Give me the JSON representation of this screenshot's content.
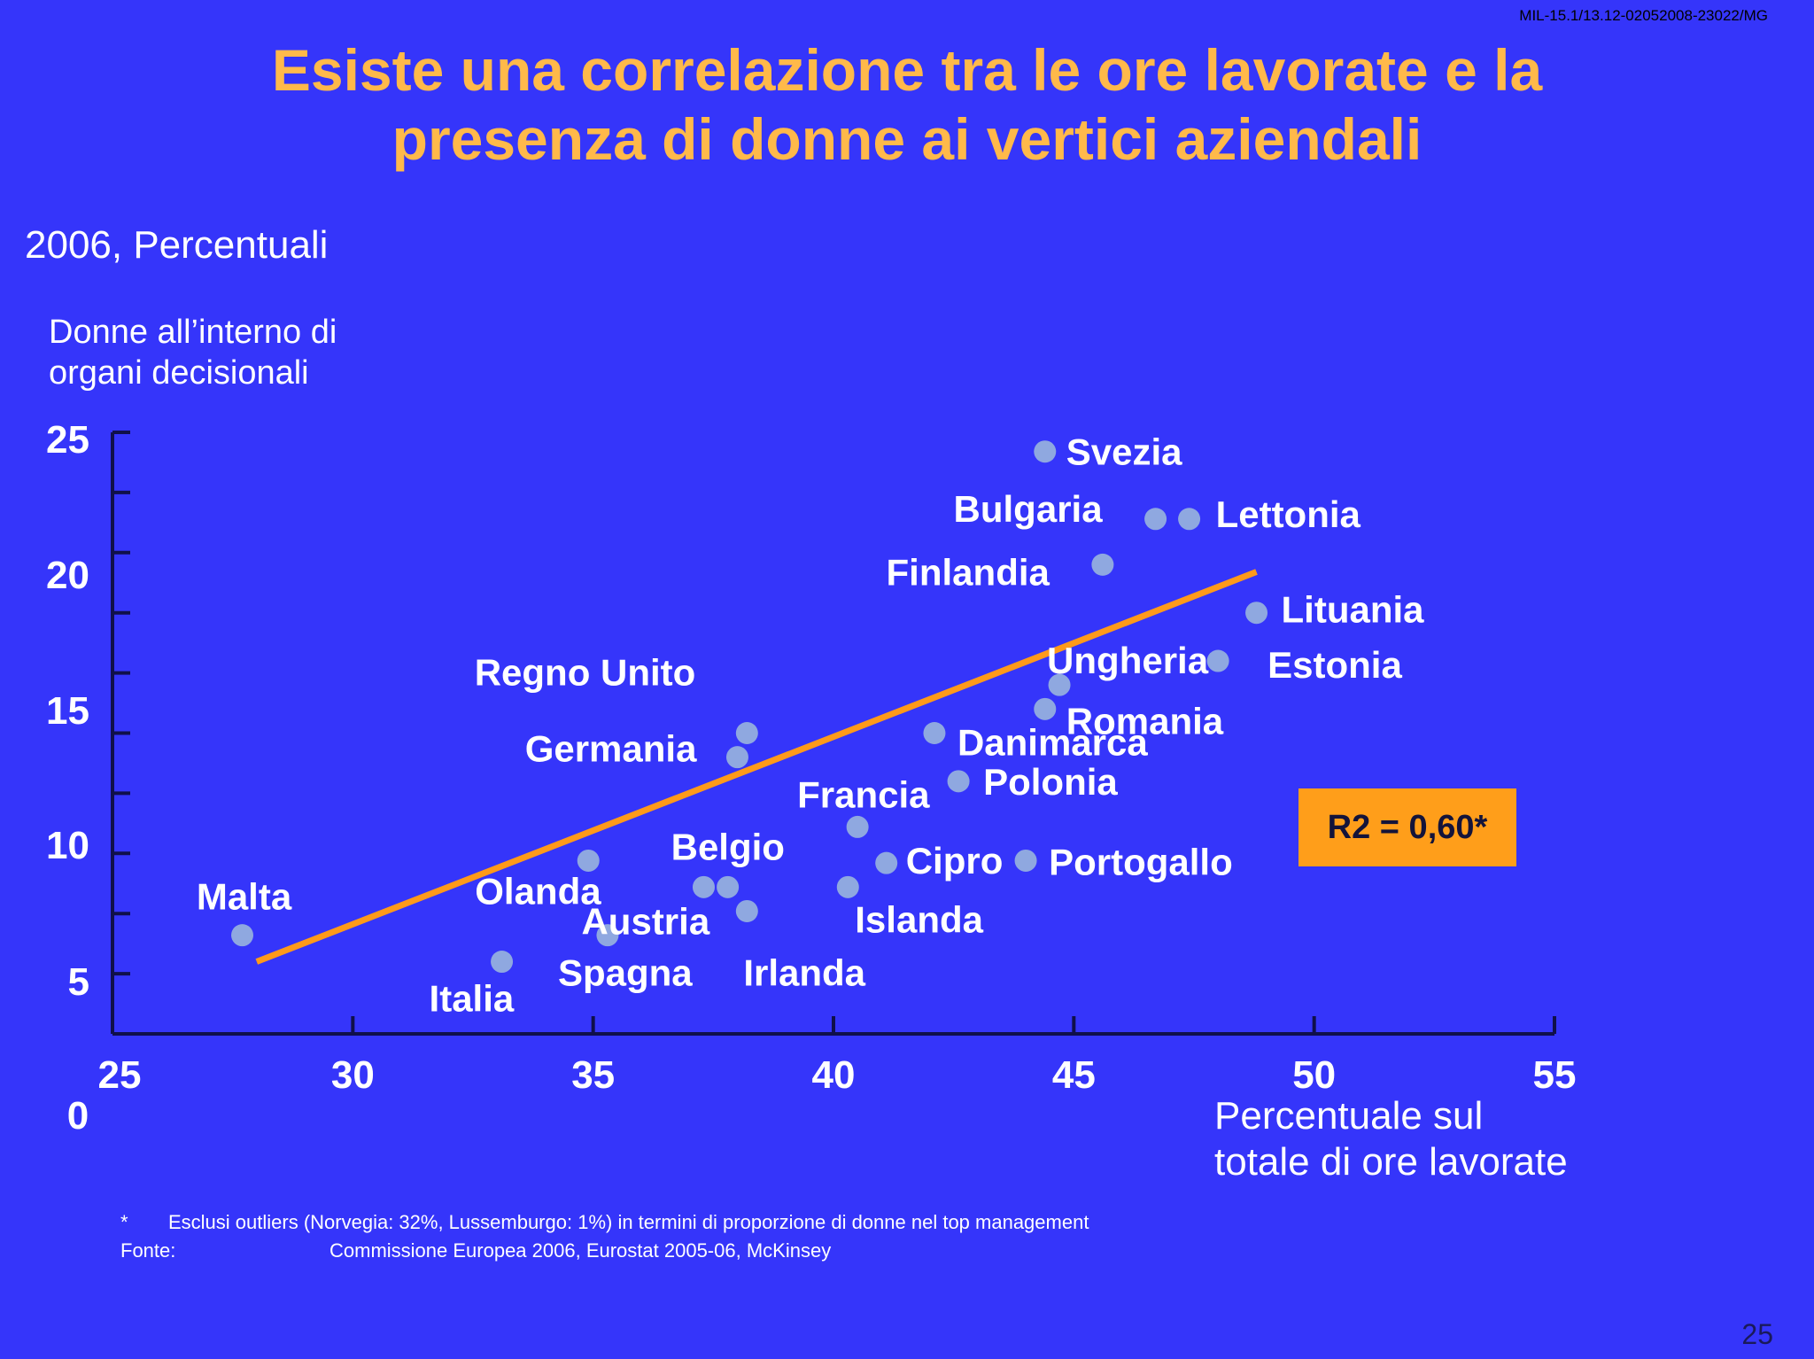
{
  "doc_id": "MIL-15.1/13.12-02052008-23022/MG",
  "title_lines": [
    "Esiste una correlazione tra le ore lavorate e la",
    "presenza di donne ai vertici aziendali"
  ],
  "subtitle": "2006, Percentuali",
  "ylabel_lines": [
    "Donne all’interno di",
    "organi decisionali"
  ],
  "xlabel_lines": [
    "Percentuale sul",
    "totale di ore lavorate"
  ],
  "r2_label": "R2 = 0,60*",
  "footnotes": [
    {
      "key": "*",
      "text": "Esclusi outliers (Norvegia: 32%, Lussemburgo: 1%) in termini di proporzione di donne nel top management"
    },
    {
      "key": "Fonte:",
      "text": "Commissione Europea 2006, Eurostat 2005-06, McKinsey"
    }
  ],
  "page_number": "25",
  "chart_data": {
    "type": "scatter",
    "title": "Esiste una correlazione tra le ore lavorate e la presenza di donne ai vertici aziendali",
    "subtitle": "2006, Percentuali",
    "xlabel": "Percentuale sul totale di ore lavorate",
    "ylabel": "Donne all’interno di organi decisionali",
    "xlim": [
      25,
      55
    ],
    "ylim": [
      0,
      25
    ],
    "x_ticks": [
      25,
      30,
      35,
      40,
      45,
      50,
      55
    ],
    "x_tick_labels": [
      "25",
      "30",
      "35",
      "40",
      "45",
      "50",
      "55"
    ],
    "y_ticks": [
      5,
      10,
      15,
      20,
      25
    ],
    "y_tick_labels": [
      "5",
      "10",
      "15",
      "20",
      "25"
    ],
    "origin_label": "0",
    "points": [
      {
        "name": "Svezia",
        "x": 44.4,
        "y": 24.2
      },
      {
        "name": "Bulgaria",
        "x": 46.7,
        "y": 21.4
      },
      {
        "name": "Lettonia",
        "x": 47.4,
        "y": 21.4
      },
      {
        "name": "Finlandia",
        "x": 45.6,
        "y": 19.5
      },
      {
        "name": "Lituania",
        "x": 48.8,
        "y": 17.5
      },
      {
        "name": "Estonia",
        "x": 48.0,
        "y": 15.5
      },
      {
        "name": "Ungheria",
        "x": 44.7,
        "y": 14.5
      },
      {
        "name": "Romania",
        "x": 44.4,
        "y": 13.5
      },
      {
        "name": "Danimarca",
        "x": 42.1,
        "y": 12.5
      },
      {
        "name": "Polonia",
        "x": 42.6,
        "y": 10.5
      },
      {
        "name": "Regno Unito",
        "x": 38.2,
        "y": 12.5
      },
      {
        "name": "Germania",
        "x": 38.0,
        "y": 11.5
      },
      {
        "name": "Francia",
        "x": 40.5,
        "y": 8.6
      },
      {
        "name": "Cipro",
        "x": 41.1,
        "y": 7.1
      },
      {
        "name": "Portogallo",
        "x": 44.0,
        "y": 7.2
      },
      {
        "name": "Islanda",
        "x": 40.3,
        "y": 6.1
      },
      {
        "name": "Belgio",
        "x": 37.8,
        "y": 6.1
      },
      {
        "name": "Olanda",
        "x": 34.9,
        "y": 7.2
      },
      {
        "name": "Austria",
        "x": 37.3,
        "y": 6.1
      },
      {
        "name": "Irlanda",
        "x": 38.2,
        "y": 5.1
      },
      {
        "name": "Spagna",
        "x": 35.3,
        "y": 4.1
      },
      {
        "name": "Italia",
        "x": 33.1,
        "y": 3.0
      },
      {
        "name": "Malta",
        "x": 27.7,
        "y": 4.1
      }
    ],
    "trendline": {
      "x": [
        28.0,
        48.8
      ],
      "y": [
        3.0,
        19.2
      ]
    },
    "r2": "R2 = 0,60*",
    "colors": {
      "background": "#3535fa",
      "point": "#8fa8e0",
      "trendline": "#ff9a1a",
      "axis": "#10104a",
      "title": "#ffb94a",
      "r2_box": "#ff9e1a"
    }
  }
}
